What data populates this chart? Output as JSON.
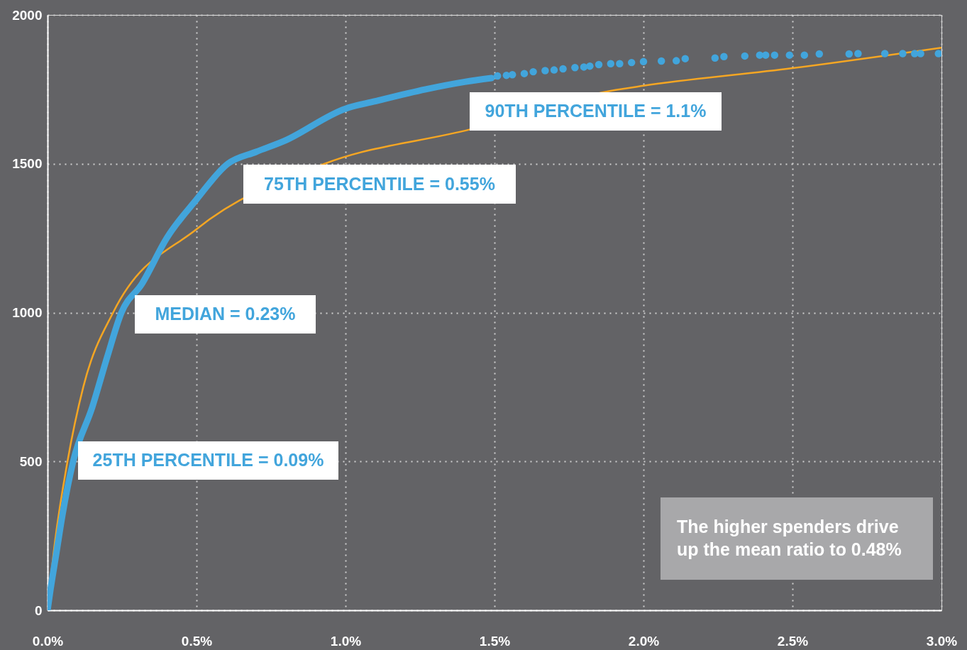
{
  "chart_data": {
    "type": "line",
    "xlim": [
      0,
      3.0
    ],
    "ylim": [
      0,
      2000
    ],
    "xticks": [
      {
        "value": 0,
        "label": "0.0%"
      },
      {
        "value": 0.5,
        "label": "0.5%"
      },
      {
        "value": 1.0,
        "label": "1.0%"
      },
      {
        "value": 1.5,
        "label": "1.5%"
      },
      {
        "value": 2.0,
        "label": "2.0%"
      },
      {
        "value": 2.5,
        "label": "2.5%"
      },
      {
        "value": 3.0,
        "label": "3.0%"
      }
    ],
    "yticks": [
      0,
      500,
      1000,
      1500,
      2000
    ],
    "grid": true,
    "series": [
      {
        "color": "#f5a623",
        "x": [
          0,
          0.02,
          0.067,
          0.12,
          0.22,
          0.5,
          0.93,
          1.42,
          1.89,
          2.0,
          2.5,
          3.0
        ],
        "values": [
          0,
          190,
          500,
          750,
          1000,
          1280,
          1500,
          1616,
          1745,
          1762,
          1821,
          1890
        ]
      },
      {
        "color": "#42a5dc",
        "x": [
          0,
          0.01,
          0.029,
          0.05,
          0.086,
          0.15,
          0.2,
          0.248,
          0.317,
          0.4,
          0.5,
          0.605,
          0.7,
          0.793,
          1.0,
          1.1,
          1.269,
          1.4,
          1.49
        ],
        "values": [
          0,
          70,
          188,
          320,
          500,
          682,
          850,
          1000,
          1097,
          1250,
          1380,
          1500,
          1540,
          1576,
          1685,
          1710,
          1750,
          1775,
          1788
        ]
      },
      {
        "type": "scatter",
        "color": "#42a5dc",
        "x": [
          1.51,
          1.54,
          1.56,
          1.6,
          1.63,
          1.67,
          1.7,
          1.73,
          1.77,
          1.8,
          1.82,
          1.85,
          1.89,
          1.92,
          1.96,
          2.0,
          2.06,
          2.11,
          2.14,
          2.24,
          2.27,
          2.34,
          2.39,
          2.41,
          2.44,
          2.49,
          2.54,
          2.59,
          2.69,
          2.72,
          2.81,
          2.87,
          2.91,
          2.93,
          2.99
        ],
        "values": [
          1795,
          1797,
          1799,
          1803,
          1809,
          1813,
          1815,
          1819,
          1823,
          1825,
          1828,
          1833,
          1836,
          1836,
          1840,
          1843,
          1845,
          1846,
          1853,
          1855,
          1860,
          1862,
          1865,
          1865,
          1865,
          1865,
          1865,
          1869,
          1869,
          1870,
          1870,
          1870,
          1870,
          1870,
          1870
        ]
      }
    ],
    "annotations": [
      "90TH PERCENTILE = 1.1%",
      "75TH PERCENTILE = 0.55%",
      "MEDIAN = 0.23%",
      "25TH PERCENTILE = 0.09%",
      "The higher spenders drive up the mean ratio to 0.48%"
    ]
  }
}
